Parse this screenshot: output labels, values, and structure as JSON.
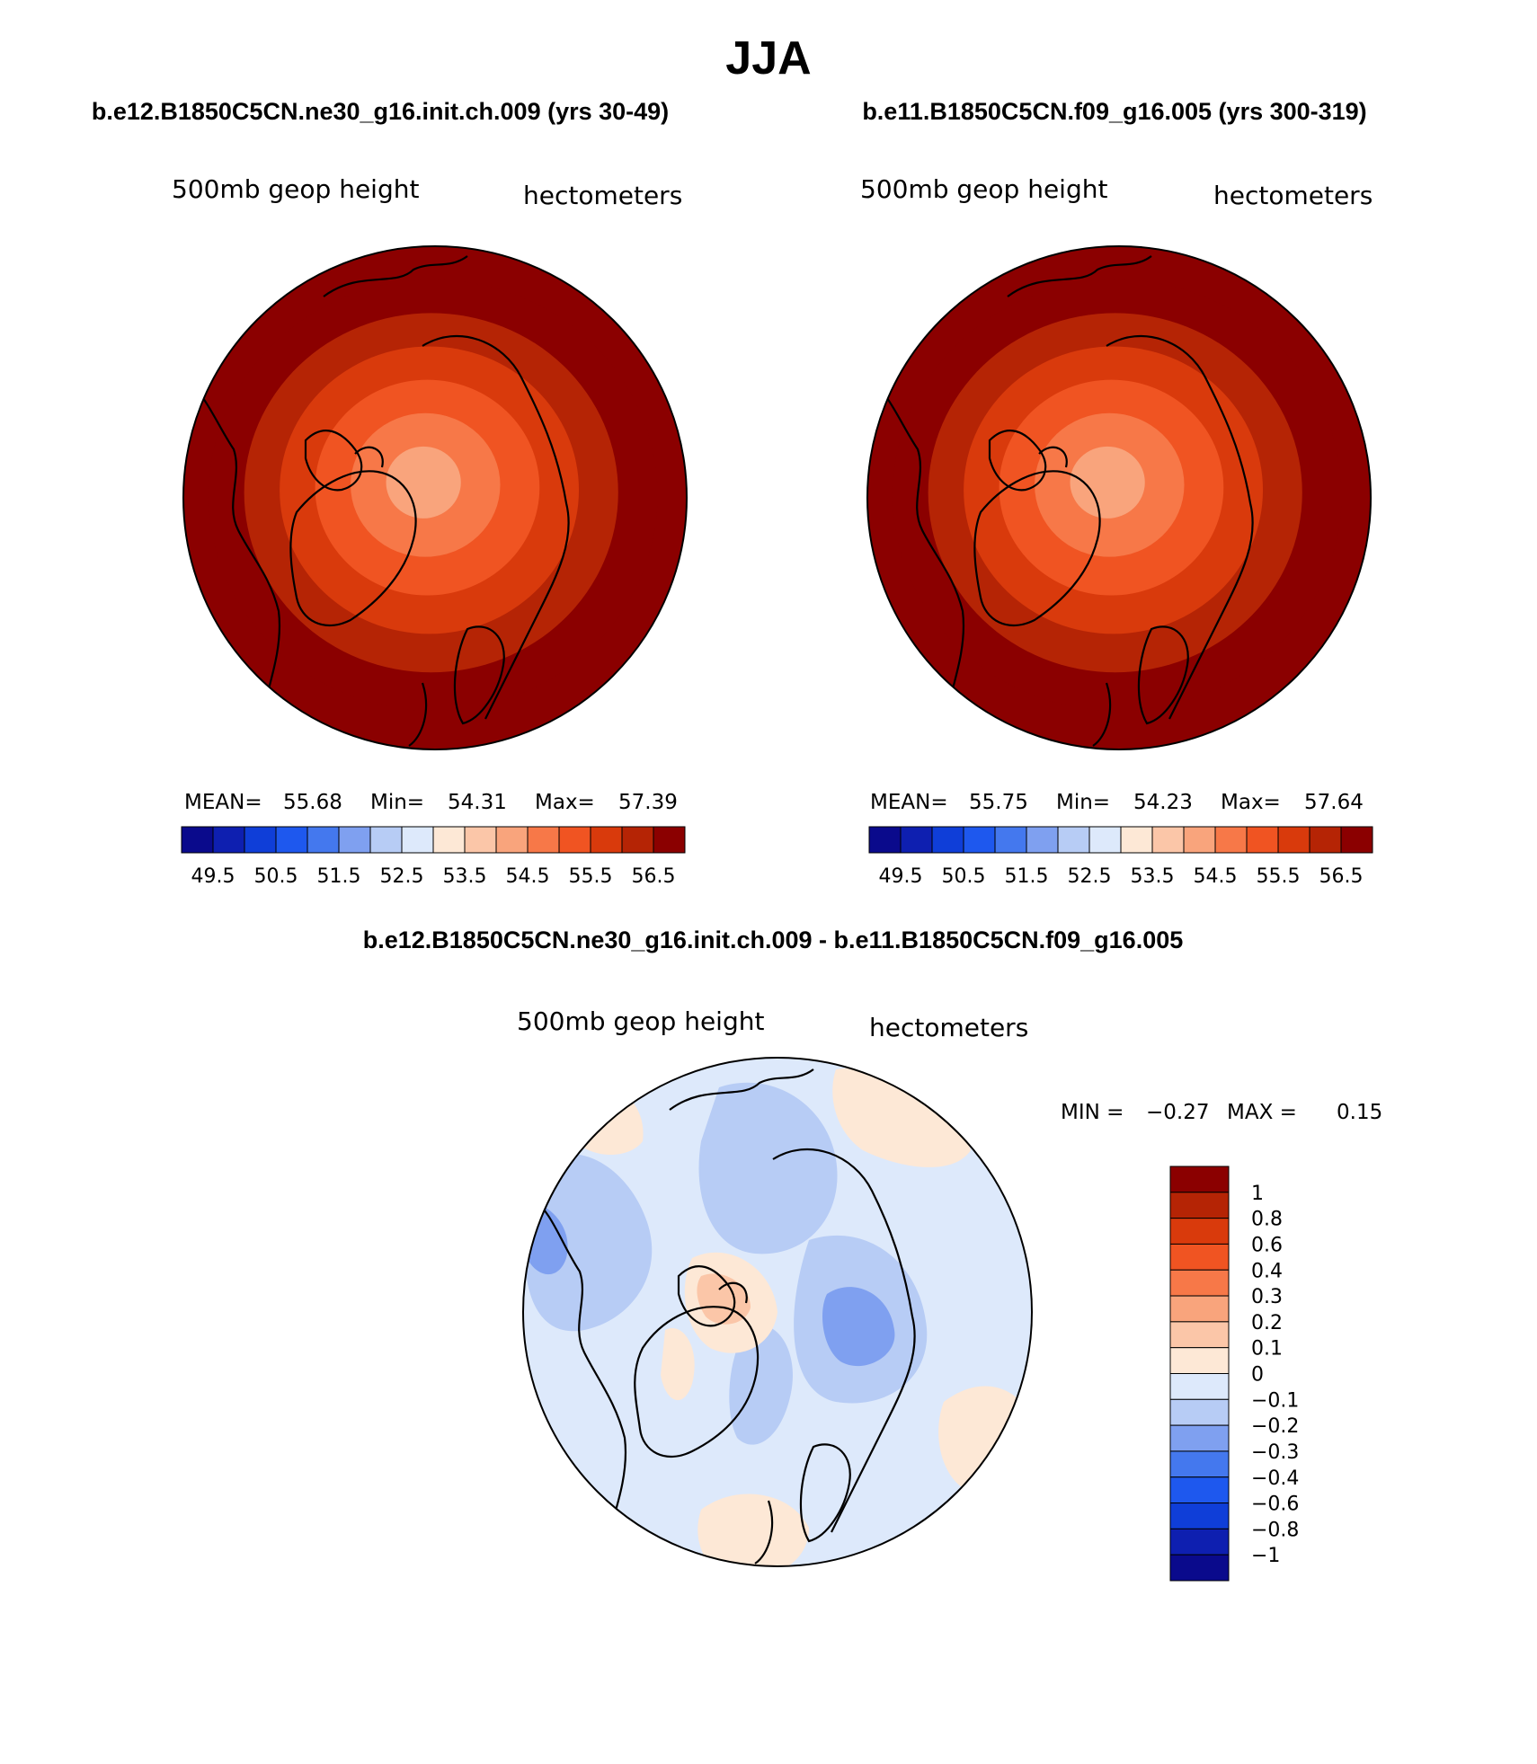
{
  "figure": {
    "season": "JJA",
    "left_case_title": "b.e12.B1850C5CN.ne30_g16.init.ch.009 (yrs 30-49)",
    "right_case_title": "b.e11.B1850C5CN.f09_g16.005 (yrs 300-319)",
    "diff_title": "b.e12.B1850C5CN.ne30_g16.init.ch.009 - b.e11.B1850C5CN.f09_g16.005"
  },
  "colors": {
    "abs_scale": [
      "#0a0a8c",
      "#0e1fb0",
      "#0f3ed8",
      "#1e58ee",
      "#4478ee",
      "#7fa0f0",
      "#b7ccf5",
      "#dde9fb",
      "#fde8d6",
      "#fbc6a8",
      "#f9a47c",
      "#f77848",
      "#f05422",
      "#d93a0c",
      "#b52405",
      "#8b0000"
    ],
    "diff_scale": [
      "#0a0a8c",
      "#0e1fb0",
      "#0f3ed8",
      "#1e58ee",
      "#4478ee",
      "#7fa0f0",
      "#b7ccf5",
      "#dde9fb",
      "#fde8d6",
      "#fbc6a8",
      "#f9a47c",
      "#f77848",
      "#f05422",
      "#d93a0c",
      "#b52405",
      "#8b0000"
    ],
    "coastline": "#000000"
  },
  "chart_data": [
    {
      "type": "heatmap",
      "name": "left-panel",
      "projection": "north-polar-stereographic",
      "variable": "500mb geop height",
      "units": "hectometers",
      "stats": {
        "mean_label": "MEAN=",
        "mean": "55.68",
        "min_label": "Min=",
        "min": "54.31",
        "max_label": "Max=",
        "max": "57.39"
      },
      "contour_levels": [
        "49.5",
        "50.5",
        "51.5",
        "52.5",
        "53.5",
        "54.5",
        "55.5",
        "56.5"
      ],
      "field_bands_from_edge": [
        57.2,
        56.8,
        56.2,
        55.8,
        55.3,
        54.8,
        54.4
      ]
    },
    {
      "type": "heatmap",
      "name": "right-panel",
      "projection": "north-polar-stereographic",
      "variable": "500mb geop height",
      "units": "hectometers",
      "stats": {
        "mean_label": "MEAN=",
        "mean": "55.75",
        "min_label": "Min=",
        "min": "54.23",
        "max_label": "Max=",
        "max": "57.64"
      },
      "contour_levels": [
        "49.5",
        "50.5",
        "51.5",
        "52.5",
        "53.5",
        "54.5",
        "55.5",
        "56.5"
      ],
      "field_bands_from_edge": [
        57.4,
        56.9,
        56.3,
        55.8,
        55.3,
        54.8,
        54.3
      ]
    },
    {
      "type": "heatmap",
      "name": "difference-panel",
      "projection": "north-polar-stereographic",
      "variable": "500mb geop height",
      "units": "hectometers",
      "stats": {
        "min_label": "MIN =",
        "min": "−0.27",
        "max_label": "MAX =",
        "max": "0.15"
      },
      "contour_levels": [
        "1",
        "0.8",
        "0.6",
        "0.4",
        "0.3",
        "0.2",
        "0.1",
        "0",
        "−0.1",
        "−0.2",
        "−0.3",
        "−0.4",
        "−0.6",
        "−0.8",
        "−1"
      ],
      "background_value": -0.05
    }
  ]
}
